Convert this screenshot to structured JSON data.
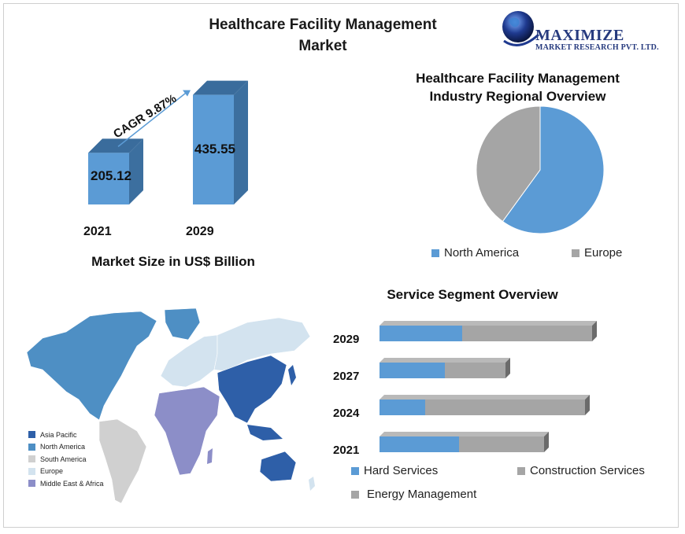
{
  "header": {
    "title_line1": "Healthcare Facility Management",
    "title_line2": "Market"
  },
  "logo": {
    "name": "MAXIMIZE",
    "subtitle": "MARKET RESEARCH PVT. LTD.",
    "globe_color": "#1f3a8f"
  },
  "colors": {
    "bar_blue": "#5b9bd5",
    "bar_side": "#3c6f9f",
    "gray": "#a5a5a5",
    "asia_pacific": "#2e5fa8",
    "north_america": "#4e8fc4",
    "south_america": "#d0d0d0",
    "europe": "#d3e3ef",
    "middle_east_africa": "#8c8ec8"
  },
  "chart_data": [
    {
      "type": "bar",
      "categories": [
        "2021",
        "2029"
      ],
      "values": [
        205.12,
        435.55
      ],
      "title": "",
      "xlabel": "Market Size in US$ Billion",
      "ylabel": "",
      "annotation": "CAGR 9.87%"
    },
    {
      "type": "pie",
      "title": "Healthcare Facility Management Industry Regional Overview",
      "labels": [
        "North America",
        "Europe"
      ],
      "values": [
        60,
        40
      ],
      "legend": "bottom"
    },
    {
      "type": "bar",
      "orientation": "horizontal",
      "stacked": true,
      "title": "Service Segment Overview",
      "categories": [
        "2029",
        "2027",
        "2024",
        "2021"
      ],
      "series": [
        {
          "name": "Hard Services",
          "values": [
            105,
            83,
            58,
            101
          ]
        },
        {
          "name": "Construction Services",
          "values": [
            165,
            77,
            203,
            108
          ]
        },
        {
          "name": "Energy Management",
          "values": [
            0,
            0,
            0,
            0
          ]
        }
      ]
    }
  ],
  "map": {
    "legend": [
      "Asia Pacific",
      "North America",
      "South America",
      "Europe",
      "Middle East & Africa"
    ]
  }
}
